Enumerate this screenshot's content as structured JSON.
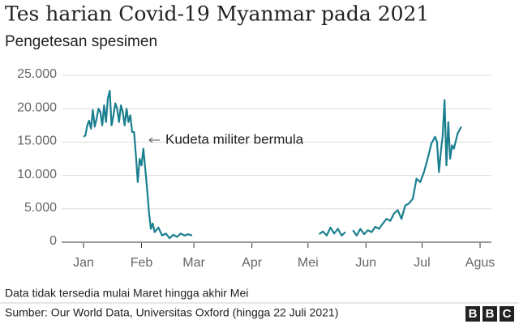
{
  "chart_data": {
    "type": "line",
    "title": "Tes harian Covid-19 Myanmar pada 2021",
    "subtitle": "Pengetesan spesimen",
    "annotation": "Kudeta militer bermula",
    "note": "Data tidak tersedia mulai Maret hingga akhir Mei",
    "source": "Sumber: Our World Data, Universitas Oxford (hingga 22 Juli 2021)",
    "logo": [
      "B",
      "B",
      "C"
    ],
    "xlim": [
      1,
      213
    ],
    "xticks": [
      {
        "value": 1,
        "label": "Jan"
      },
      {
        "value": 32,
        "label": "Feb"
      },
      {
        "value": 60,
        "label": "Mar"
      },
      {
        "value": 91,
        "label": "Apr"
      },
      {
        "value": 121,
        "label": "Mei"
      },
      {
        "value": 152,
        "label": "Jun"
      },
      {
        "value": 182,
        "label": "Jul"
      },
      {
        "value": 213,
        "label": "Agus"
      }
    ],
    "ylim": [
      0,
      25000
    ],
    "yticks": [
      0,
      {
        "value": 5000,
        "label": "5.000"
      },
      {
        "value": 10000,
        "label": "10.000"
      },
      {
        "value": 15000,
        "label": "15.000"
      },
      {
        "value": 20000,
        "label": "20.000"
      },
      {
        "value": 25000,
        "label": "25.000"
      }
    ],
    "grid": true,
    "color": "#1a7f8e",
    "x": [
      1,
      2,
      3,
      4,
      5,
      6,
      7,
      8,
      9,
      10,
      11,
      12,
      13,
      14,
      15,
      16,
      17,
      18,
      19,
      20,
      21,
      22,
      23,
      24,
      25,
      26,
      27,
      28,
      29,
      30,
      31,
      32,
      33,
      34,
      35,
      36,
      37,
      38,
      39,
      41,
      43,
      45,
      47,
      49,
      51,
      53,
      55,
      57,
      59,
      60,
      127,
      129,
      131,
      133,
      135,
      137,
      139,
      141,
      143,
      145,
      147,
      149,
      151,
      153,
      155,
      157,
      159,
      161,
      163,
      165,
      167,
      169,
      171,
      173,
      175,
      177,
      179,
      181,
      183,
      185,
      187,
      189,
      190,
      191,
      192,
      193,
      194,
      195,
      196,
      197,
      198,
      199,
      201,
      203
    ],
    "values": [
      15800,
      16000,
      17500,
      18200,
      17000,
      19800,
      17300,
      18500,
      20000,
      19500,
      17500,
      20500,
      18000,
      21500,
      22700,
      17500,
      19000,
      20800,
      20000,
      18000,
      20500,
      19500,
      17500,
      20000,
      18000,
      19000,
      16500,
      16500,
      13000,
      9000,
      12500,
      11500,
      14000,
      11000,
      8000,
      4500,
      2000,
      2800,
      1500,
      2200,
      1000,
      1300,
      600,
      1100,
      800,
      1300,
      1000,
      1200,
      1000,
      null,
      1200,
      1600,
      1000,
      2200,
      1300,
      2000,
      1000,
      1500,
      null,
      1800,
      1000,
      2000,
      1200,
      1800,
      1500,
      2300,
      2000,
      2800,
      3500,
      3200,
      4300,
      4800,
      3500,
      5500,
      5800,
      6500,
      9500,
      9000,
      10500,
      12500,
      14800,
      15800,
      15000,
      10500,
      13500,
      16000,
      21300,
      11500,
      18000,
      12500,
      14500,
      14000,
      16300,
      17300
    ]
  }
}
